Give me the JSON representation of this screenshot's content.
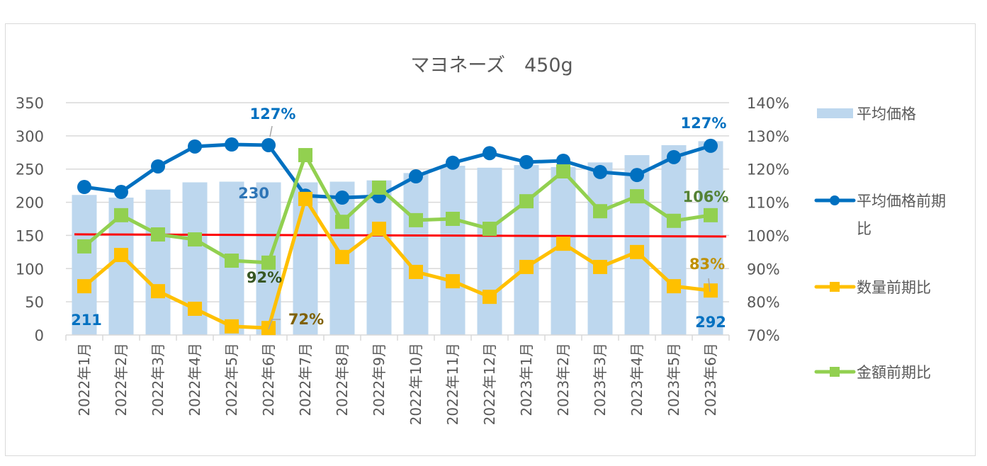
{
  "chart_data": {
    "type": "bar+line",
    "title": "マヨネーズ　450g",
    "categories": [
      "2022年1月",
      "2022年2月",
      "2022年3月",
      "2022年4月",
      "2022年5月",
      "2022年6月",
      "2022年7月",
      "2022年8月",
      "2022年9月",
      "2022年10月",
      "2022年11月",
      "2022年12月",
      "2023年1月",
      "2023年2月",
      "2023年3月",
      "2023年4月",
      "2023年5月",
      "2023年6月"
    ],
    "left_axis": {
      "ylim": [
        0,
        350
      ],
      "ticks": [
        "0",
        "50",
        "100",
        "150",
        "200",
        "250",
        "300",
        "350"
      ]
    },
    "right_axis": {
      "ylim": [
        70,
        140
      ],
      "ticks": [
        "70%",
        "80%",
        "90%",
        "100%",
        "110%",
        "120%",
        "130%",
        "140%"
      ]
    },
    "grid": true,
    "legend_position": "right",
    "series": [
      {
        "name": "平均価格",
        "type": "bar",
        "axis": "left",
        "color": "#bdd7ee",
        "values": [
          211,
          207,
          219,
          230,
          231,
          230,
          230,
          231,
          233,
          244,
          255,
          252,
          256,
          253,
          260,
          271,
          286,
          292
        ]
      },
      {
        "name": "平均価格前期比",
        "type": "line",
        "marker": "circle",
        "axis": "right",
        "color": "#0070c0",
        "values": [
          114.6,
          113.1,
          120.8,
          126.8,
          127.4,
          127.2,
          112.0,
          111.4,
          111.8,
          117.8,
          121.9,
          124.8,
          122.1,
          122.5,
          119.1,
          118.2,
          123.6,
          127.0
        ]
      },
      {
        "name": "数量前期比",
        "type": "line",
        "marker": "square",
        "axis": "right",
        "color": "#ffc000",
        "values": [
          84.7,
          94.1,
          83.2,
          77.9,
          72.6,
          72.1,
          111.0,
          93.5,
          102.0,
          89.0,
          86.2,
          81.5,
          90.5,
          97.5,
          90.5,
          95.0,
          84.7,
          83.4
        ]
      },
      {
        "name": "金額前期比",
        "type": "line",
        "marker": "square",
        "axis": "right",
        "color": "#92d050",
        "values": [
          96.7,
          106.1,
          100.3,
          98.8,
          92.4,
          91.8,
          124.2,
          104.1,
          114.4,
          104.6,
          105.0,
          102.0,
          110.3,
          119.3,
          107.3,
          111.8,
          104.4,
          106.1
        ]
      }
    ],
    "reference_line": {
      "value": 100,
      "axis": "right",
      "color": "#ff0000"
    },
    "annotations": [
      {
        "text": "211",
        "series": "平均価格",
        "category": "2022年1月",
        "color": "#0070c0"
      },
      {
        "text": "230",
        "series": "平均価格",
        "category": "2022年6月",
        "color": "#2e75b6"
      },
      {
        "text": "292",
        "series": "平均価格",
        "category": "2023年6月",
        "color": "#0070c0"
      },
      {
        "text": "127%",
        "series": "平均価格前期比",
        "category": "2022年6月",
        "color": "#0070c0"
      },
      {
        "text": "127%",
        "series": "平均価格前期比",
        "category": "2023年6月",
        "color": "#0070c0"
      },
      {
        "text": "92%",
        "series": "金額前期比",
        "category": "2022年6月",
        "color": "#375623"
      },
      {
        "text": "106%",
        "series": "金額前期比",
        "category": "2023年6月",
        "color": "#548235"
      },
      {
        "text": "72%",
        "series": "数量前期比",
        "category": "2022年6月",
        "color": "#7f6000"
      },
      {
        "text": "83%",
        "series": "数量前期比",
        "category": "2023年6月",
        "color": "#bf9000"
      }
    ]
  }
}
